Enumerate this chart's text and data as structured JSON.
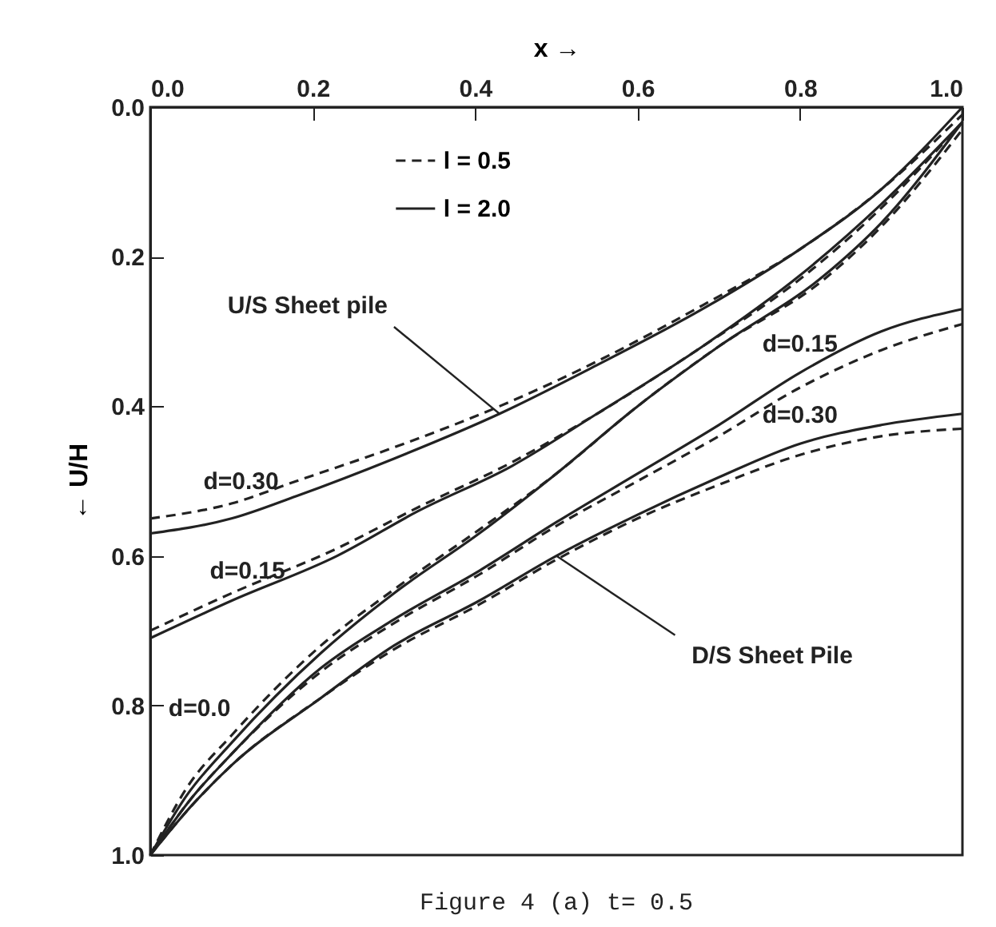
{
  "chart_data": {
    "type": "line",
    "title": "Figure 4 (a)  t= 0.5",
    "xlabel": "x →",
    "ylabel": "← U/H",
    "xlim": [
      0,
      1.0
    ],
    "ylim": [
      1.0,
      0.0
    ],
    "xticks": [
      {
        "value": 0,
        "label": "0.0"
      },
      {
        "value": 0.2,
        "label": "0.2"
      },
      {
        "value": 0.4,
        "label": "0.4"
      },
      {
        "value": 0.6,
        "label": "0.6"
      },
      {
        "value": 0.8,
        "label": "0.8"
      },
      {
        "value": 1.0,
        "label": "1.0"
      }
    ],
    "yticks": [
      {
        "value": 0,
        "label": "0.0"
      },
      {
        "value": 0.2,
        "label": "0.2"
      },
      {
        "value": 0.4,
        "label": "0.4"
      },
      {
        "value": 0.6,
        "label": "0.6"
      },
      {
        "value": 0.8,
        "label": "0.8"
      },
      {
        "value": 1.0,
        "label": "1.0"
      }
    ],
    "grid": false,
    "legend": "top",
    "marker": "none",
    "series": [
      {
        "name": "l = 0.5",
        "color": "#222222",
        "line_style": "dashed",
        "x": [
          0,
          0.1,
          0.18,
          0.3,
          0.43,
          0.55,
          0.68,
          0.8,
          0.9,
          1.0
        ],
        "values": [
          0.55,
          0.53,
          0.5,
          0.455,
          0.4,
          0.34,
          0.265,
          0.19,
          0.11,
          0.01
        ]
      },
      {
        "name": "l = 2.0",
        "color": "#222222",
        "line_style": "solid",
        "x": [
          0,
          0.1,
          0.18,
          0.3,
          0.43,
          0.55,
          0.68,
          0.8,
          0.9,
          1.0
        ],
        "values": [
          0.57,
          0.55,
          0.52,
          0.47,
          0.41,
          0.345,
          0.27,
          0.19,
          0.11,
          0.0
        ]
      },
      {
        "color": "#222222",
        "line_style": "dashed",
        "x": [
          0,
          0.1,
          0.23,
          0.33,
          0.445,
          0.55,
          0.68,
          0.8,
          0.9,
          1.0
        ],
        "values": [
          0.7,
          0.65,
          0.59,
          0.535,
          0.475,
          0.41,
          0.32,
          0.23,
          0.135,
          0.02
        ]
      },
      {
        "color": "#222222",
        "line_style": "solid",
        "x": [
          0,
          0.1,
          0.23,
          0.33,
          0.445,
          0.55,
          0.68,
          0.8,
          0.9,
          1.0
        ],
        "values": [
          0.71,
          0.66,
          0.6,
          0.54,
          0.48,
          0.41,
          0.32,
          0.225,
          0.13,
          0.02
        ]
      },
      {
        "color": "#222222",
        "line_style": "dashed",
        "x": [
          0,
          0.045,
          0.1,
          0.21,
          0.3,
          0.405,
          0.5,
          0.6,
          0.7,
          0.83,
          0.9,
          1.0
        ],
        "values": [
          1.0,
          0.91,
          0.84,
          0.72,
          0.645,
          0.565,
          0.49,
          0.4,
          0.32,
          0.23,
          0.16,
          0.03
        ]
      },
      {
        "color": "#222222",
        "line_style": "solid",
        "x": [
          0,
          0.045,
          0.1,
          0.21,
          0.3,
          0.405,
          0.5,
          0.6,
          0.7,
          0.83,
          0.9,
          1.0
        ],
        "values": [
          1.0,
          0.92,
          0.85,
          0.73,
          0.65,
          0.57,
          0.49,
          0.4,
          0.32,
          0.225,
          0.155,
          0.02
        ]
      },
      {
        "color": "#222222",
        "line_style": "dashed",
        "x": [
          0,
          0.05,
          0.1,
          0.21,
          0.3,
          0.405,
          0.5,
          0.6,
          0.7,
          0.8,
          0.9,
          1.0
        ],
        "values": [
          1.0,
          0.925,
          0.865,
          0.755,
          0.69,
          0.625,
          0.56,
          0.5,
          0.44,
          0.375,
          0.325,
          0.29
        ]
      },
      {
        "color": "#222222",
        "line_style": "solid",
        "x": [
          0,
          0.05,
          0.1,
          0.21,
          0.3,
          0.405,
          0.5,
          0.6,
          0.7,
          0.8,
          0.9,
          1.0
        ],
        "values": [
          1.0,
          0.925,
          0.865,
          0.75,
          0.685,
          0.62,
          0.555,
          0.49,
          0.425,
          0.355,
          0.3,
          0.27
        ]
      },
      {
        "color": "#222222",
        "line_style": "dashed",
        "x": [
          0,
          0.05,
          0.1,
          0.21,
          0.3,
          0.405,
          0.5,
          0.6,
          0.7,
          0.8,
          0.9,
          1.0
        ],
        "values": [
          1.0,
          0.935,
          0.88,
          0.79,
          0.725,
          0.665,
          0.605,
          0.55,
          0.505,
          0.465,
          0.44,
          0.43
        ]
      },
      {
        "color": "#222222",
        "line_style": "solid",
        "x": [
          0,
          0.05,
          0.1,
          0.21,
          0.3,
          0.405,
          0.5,
          0.6,
          0.7,
          0.8,
          0.9,
          1.0
        ],
        "values": [
          1.0,
          0.935,
          0.88,
          0.79,
          0.72,
          0.66,
          0.6,
          0.545,
          0.495,
          0.45,
          0.425,
          0.41
        ]
      }
    ],
    "annotations": [
      {
        "text": "U/S Sheet pile",
        "x": 0.43,
        "y": 0.41
      },
      {
        "text": "D/S Sheet Pile",
        "x": 0.5,
        "y": 0.6
      },
      {
        "text": "d=0.30",
        "x": 0.1,
        "y": 0.53
      },
      {
        "text": "d=0.15",
        "x": 0.1,
        "y": 0.65
      },
      {
        "text": "d=0.0",
        "x": 0.1,
        "y": 0.84
      },
      {
        "text": "d=0.15",
        "x": 0.8,
        "y": 0.355
      },
      {
        "text": "d=0.30",
        "x": 0.8,
        "y": 0.45
      }
    ]
  }
}
